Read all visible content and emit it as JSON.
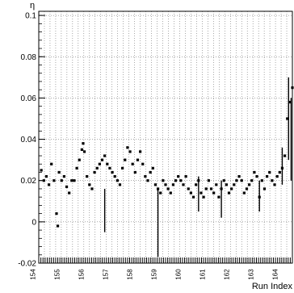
{
  "chart_data": {
    "type": "scatter",
    "title": "",
    "xlabel": "Run Index",
    "ylabel": "η",
    "ylim": [
      -0.02,
      0.102
    ],
    "yticks": [
      -0.02,
      0,
      0.02,
      0.04,
      0.06,
      0.08,
      0.1
    ],
    "ytick_labels": [
      "-0.02",
      "0",
      "0.02",
      "0.04",
      "0.06",
      "0.08",
      "0.1"
    ],
    "xtick_labels": [
      "154",
      "155",
      "156",
      "157",
      "158",
      "159",
      "160",
      "161",
      "162",
      "163",
      "164"
    ],
    "grid": true,
    "points": [
      [
        0.01,
        0.025
      ],
      [
        0.02,
        0.02
      ],
      [
        0.03,
        0.022
      ],
      [
        0.04,
        0.018
      ],
      [
        0.05,
        0.028
      ],
      [
        0.06,
        0.02
      ],
      [
        0.07,
        0.004
      ],
      [
        0.075,
        -0.002
      ],
      [
        0.08,
        0.024
      ],
      [
        0.09,
        0.02
      ],
      [
        0.1,
        0.022
      ],
      [
        0.11,
        0.017
      ],
      [
        0.12,
        0.014
      ],
      [
        0.13,
        0.02
      ],
      [
        0.14,
        0.02
      ],
      [
        0.15,
        0.026
      ],
      [
        0.16,
        0.03
      ],
      [
        0.17,
        0.035
      ],
      [
        0.175,
        0.038
      ],
      [
        0.18,
        0.034
      ],
      [
        0.19,
        0.022
      ],
      [
        0.2,
        0.018
      ],
      [
        0.21,
        0.016
      ],
      [
        0.22,
        0.024
      ],
      [
        0.23,
        0.026
      ],
      [
        0.24,
        0.028
      ],
      [
        0.25,
        0.03
      ],
      [
        0.26,
        0.032
      ],
      [
        0.27,
        0.028
      ],
      [
        0.28,
        0.026
      ],
      [
        0.29,
        0.024
      ],
      [
        0.3,
        0.022
      ],
      [
        0.31,
        0.02
      ],
      [
        0.32,
        0.018
      ],
      [
        0.33,
        0.026
      ],
      [
        0.34,
        0.03
      ],
      [
        0.35,
        0.036
      ],
      [
        0.36,
        0.034
      ],
      [
        0.37,
        0.028
      ],
      [
        0.38,
        0.024
      ],
      [
        0.39,
        0.03
      ],
      [
        0.4,
        0.034
      ],
      [
        0.41,
        0.028
      ],
      [
        0.42,
        0.022
      ],
      [
        0.43,
        0.02
      ],
      [
        0.44,
        0.024
      ],
      [
        0.45,
        0.026
      ],
      [
        0.46,
        0.018
      ],
      [
        0.47,
        0.016
      ],
      [
        0.48,
        0.014
      ],
      [
        0.49,
        0.02
      ],
      [
        0.5,
        0.018
      ],
      [
        0.51,
        0.016
      ],
      [
        0.52,
        0.014
      ],
      [
        0.53,
        0.018
      ],
      [
        0.54,
        0.02
      ],
      [
        0.55,
        0.022
      ],
      [
        0.56,
        0.02
      ],
      [
        0.57,
        0.018
      ],
      [
        0.58,
        0.022
      ],
      [
        0.59,
        0.016
      ],
      [
        0.6,
        0.014
      ],
      [
        0.61,
        0.012
      ],
      [
        0.62,
        0.018
      ],
      [
        0.63,
        0.02
      ],
      [
        0.64,
        0.014
      ],
      [
        0.65,
        0.012
      ],
      [
        0.66,
        0.016
      ],
      [
        0.67,
        0.02
      ],
      [
        0.68,
        0.016
      ],
      [
        0.69,
        0.014
      ],
      [
        0.7,
        0.018
      ],
      [
        0.71,
        0.012
      ],
      [
        0.72,
        0.016
      ],
      [
        0.73,
        0.02
      ],
      [
        0.74,
        0.018
      ],
      [
        0.75,
        0.014
      ],
      [
        0.76,
        0.016
      ],
      [
        0.77,
        0.018
      ],
      [
        0.78,
        0.02
      ],
      [
        0.79,
        0.022
      ],
      [
        0.8,
        0.02
      ],
      [
        0.81,
        0.014
      ],
      [
        0.82,
        0.016
      ],
      [
        0.83,
        0.018
      ],
      [
        0.84,
        0.02
      ],
      [
        0.85,
        0.024
      ],
      [
        0.86,
        0.022
      ],
      [
        0.87,
        0.012
      ],
      [
        0.88,
        0.02
      ],
      [
        0.89,
        0.016
      ],
      [
        0.9,
        0.022
      ],
      [
        0.91,
        0.024
      ],
      [
        0.92,
        0.02
      ],
      [
        0.93,
        0.018
      ],
      [
        0.94,
        0.022
      ],
      [
        0.95,
        0.024
      ],
      [
        0.96,
        0.026
      ],
      [
        0.97,
        0.032
      ],
      [
        0.98,
        0.05
      ],
      [
        0.99,
        0.058
      ],
      [
        1.0,
        0.065
      ]
    ],
    "error_bars": [
      [
        0.26,
        -0.005,
        0.016
      ],
      [
        0.47,
        -0.017,
        0.016
      ],
      [
        0.63,
        0.005,
        0.022
      ],
      [
        0.72,
        0.002,
        0.02
      ],
      [
        0.87,
        0.005,
        0.02
      ],
      [
        0.96,
        0.018,
        0.036
      ],
      [
        0.985,
        0.03,
        0.07
      ],
      [
        0.995,
        0.02,
        0.06
      ]
    ]
  }
}
